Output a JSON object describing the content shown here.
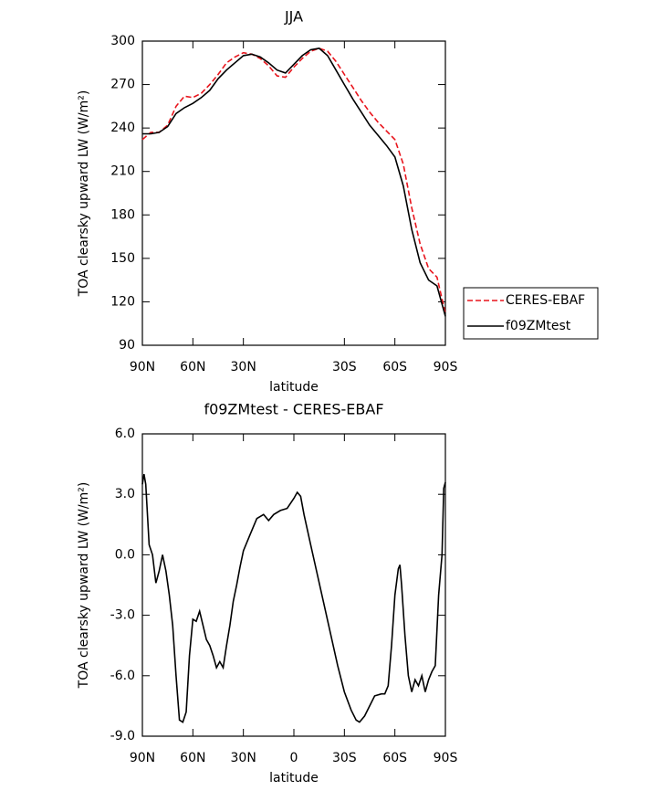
{
  "chart_data": [
    {
      "type": "line",
      "title": "JJA",
      "xlabel": "latitude",
      "ylabel": "TOA clearsky upward LW (W/m²)",
      "x": [
        90,
        85,
        80,
        75,
        70,
        65,
        60,
        55,
        50,
        45,
        40,
        35,
        30,
        25,
        20,
        15,
        10,
        5,
        0,
        -5,
        -10,
        -15,
        -20,
        -25,
        -30,
        -35,
        -40,
        -45,
        -50,
        -55,
        -60,
        -65,
        -70,
        -75,
        -80,
        -85,
        -90
      ],
      "series": [
        {
          "name": "CERES-EBAF",
          "color": "#e8141c",
          "style": "dashed",
          "values": [
            232,
            237,
            237,
            242,
            255,
            262,
            261,
            264,
            270,
            277,
            285,
            289,
            292,
            291,
            288,
            283,
            276,
            275,
            282,
            288,
            293,
            295,
            293,
            286,
            277,
            268,
            259,
            251,
            244,
            238,
            232,
            215,
            185,
            160,
            143,
            137,
            112
          ]
        },
        {
          "name": "f09ZMtest",
          "color": "#000000",
          "style": "solid",
          "values": [
            236,
            236,
            237,
            241,
            250,
            254,
            257,
            261,
            266,
            274,
            280,
            285,
            290,
            291,
            289,
            285,
            280,
            278,
            284,
            290,
            294,
            295,
            290,
            280,
            270,
            260,
            251,
            242,
            235,
            228,
            220,
            200,
            170,
            147,
            135,
            131,
            110
          ]
        }
      ],
      "xlim": [
        90,
        -90
      ],
      "xticks": [
        {
          "value": 90,
          "label": "90N"
        },
        {
          "value": 60,
          "label": "60N"
        },
        {
          "value": 30,
          "label": "30N"
        },
        {
          "value": -30,
          "label": "30S"
        },
        {
          "value": -60,
          "label": "60S"
        },
        {
          "value": -90,
          "label": "90S"
        }
      ],
      "ylim": [
        90,
        300
      ],
      "yticks": [
        90,
        120,
        150,
        180,
        210,
        240,
        270,
        300
      ],
      "legend": "right"
    },
    {
      "type": "line",
      "title": "f09ZMtest - CERES-EBAF",
      "xlabel": "latitude",
      "ylabel": "TOA clearsky upward LW (W/m²)",
      "x": [
        90,
        89,
        88,
        86,
        84,
        82,
        80,
        78,
        76,
        74,
        72,
        70,
        68,
        66,
        64,
        62,
        60,
        58,
        56,
        54,
        52,
        50,
        48,
        46,
        44,
        42,
        40,
        38,
        36,
        34,
        32,
        30,
        26,
        22,
        18,
        15,
        12,
        8,
        4,
        0,
        -2,
        -4,
        -6,
        -10,
        -14,
        -18,
        -22,
        -26,
        -30,
        -34,
        -37,
        -39,
        -42,
        -45,
        -48,
        -52,
        -54,
        -56,
        -58,
        -60,
        -62,
        -63,
        -64,
        -66,
        -68,
        -70,
        -72,
        -74,
        -76,
        -78,
        -80,
        -82,
        -84,
        -86,
        -88,
        -89,
        -90
      ],
      "values": [
        3.5,
        4.0,
        3.5,
        0.5,
        0,
        -1.4,
        -0.8,
        0,
        -0.8,
        -2,
        -3.5,
        -6,
        -8.2,
        -8.3,
        -7.8,
        -5,
        -3.2,
        -3.3,
        -2.8,
        -3.5,
        -4.2,
        -4.5,
        -5,
        -5.6,
        -5.3,
        -5.6,
        -4.5,
        -3.5,
        -2.3,
        -1.5,
        -0.6,
        0.2,
        1.0,
        1.8,
        2.0,
        1.7,
        2.0,
        2.2,
        2.3,
        2.8,
        3.1,
        2.9,
        2.0,
        0.5,
        -1.0,
        -2.5,
        -4.0,
        -5.5,
        -6.8,
        -7.7,
        -8.2,
        -8.3,
        -8.0,
        -7.5,
        -7.0,
        -6.9,
        -6.9,
        -6.5,
        -4.5,
        -2.0,
        -0.7,
        -0.5,
        -1.5,
        -4,
        -6,
        -6.8,
        -6.2,
        -6.5,
        -6.0,
        -6.8,
        -6.2,
        -5.8,
        -5.5,
        -2,
        0,
        3.3,
        3.6
      ],
      "color": "#000000",
      "xlim": [
        90,
        -90
      ],
      "xticks": [
        {
          "value": 90,
          "label": "90N"
        },
        {
          "value": 60,
          "label": "60N"
        },
        {
          "value": 30,
          "label": "30N"
        },
        0,
        {
          "value": -30,
          "label": "30S"
        },
        {
          "value": -60,
          "label": "60S"
        },
        {
          "value": -90,
          "label": "90S"
        }
      ],
      "ylim": [
        -9,
        6
      ],
      "yticks": [
        {
          "value": -9,
          "label": "-9.0"
        },
        {
          "value": -6,
          "label": "-6.0"
        },
        {
          "value": -3,
          "label": "-3.0"
        },
        {
          "value": 0,
          "label": "0.0"
        },
        {
          "value": 3,
          "label": "3.0"
        },
        {
          "value": 6,
          "label": "6.0"
        }
      ]
    }
  ]
}
